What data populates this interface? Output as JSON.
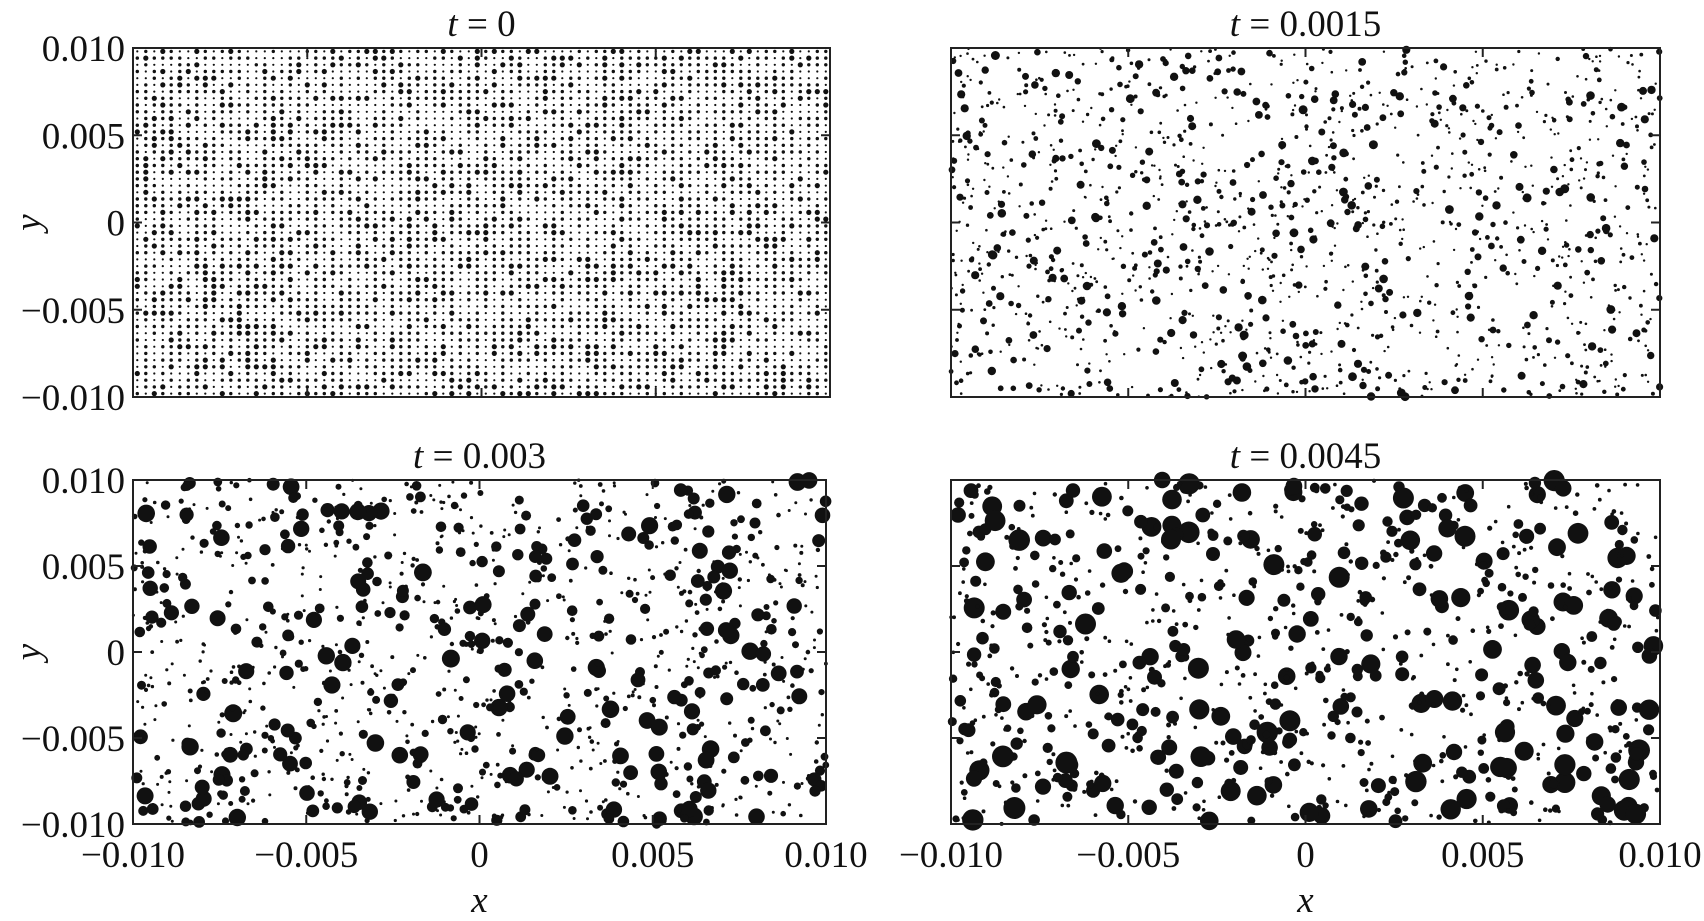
{
  "chart_data": [
    {
      "type": "scatter",
      "title": "t = 0",
      "title_var": "t",
      "title_value": "0",
      "xlabel": "",
      "ylabel": "y",
      "xlim": [
        -0.01,
        0.01
      ],
      "ylim": [
        -0.01,
        0.01
      ],
      "show_xticklabels": false,
      "show_yticklabels": true,
      "pattern": "regular lattice of small particles"
    },
    {
      "type": "scatter",
      "title": "t = 0.0015",
      "title_var": "t",
      "title_value": "0.0015",
      "xlabel": "",
      "ylabel": "",
      "xlim": [
        -0.01,
        0.01
      ],
      "ylim": [
        -0.01,
        0.01
      ],
      "show_xticklabels": false,
      "show_yticklabels": false,
      "pattern": "random small particles"
    },
    {
      "type": "scatter",
      "title": "t = 0.003",
      "title_var": "t",
      "title_value": "0.003",
      "xlabel": "x",
      "ylabel": "y",
      "xlim": [
        -0.01,
        0.01
      ],
      "ylim": [
        -0.01,
        0.01
      ],
      "show_xticklabels": true,
      "show_yticklabels": true,
      "pattern": "random medium particles"
    },
    {
      "type": "scatter",
      "title": "t = 0.0045",
      "title_var": "t",
      "title_value": "0.0045",
      "xlabel": "x",
      "ylabel": "",
      "xlim": [
        -0.01,
        0.01
      ],
      "ylim": [
        -0.01,
        0.01
      ],
      "show_xticklabels": true,
      "show_yticklabels": false,
      "pattern": "random large particles"
    }
  ],
  "xticks": [
    "−0.010",
    "−0.005",
    "0",
    "0.005",
    "0.010"
  ],
  "yticks": [
    "0.010",
    "0.005",
    "0",
    "−0.005",
    "−0.010"
  ],
  "colors": {
    "marker": "#111111",
    "axes": "#222222",
    "background": "#ffffff"
  }
}
